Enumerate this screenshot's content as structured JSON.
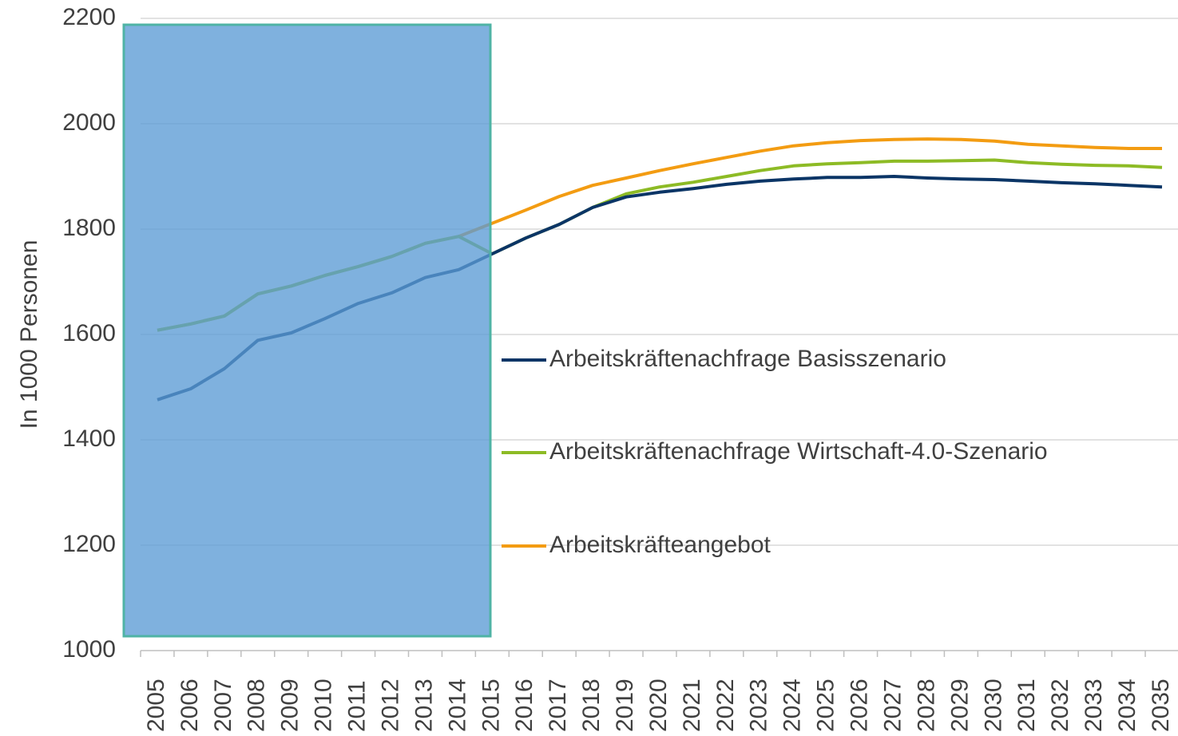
{
  "chart_data": {
    "type": "line",
    "ylabel": "In 1000 Personen",
    "categories": [
      "2005",
      "2006",
      "2007",
      "2008",
      "2009",
      "2010",
      "2011",
      "2012",
      "2013",
      "2014",
      "2015",
      "2016",
      "2017",
      "2018",
      "2019",
      "2020",
      "2021",
      "2022",
      "2023",
      "2024",
      "2025",
      "2026",
      "2027",
      "2028",
      "2029",
      "2030",
      "2031",
      "2032",
      "2033",
      "2034",
      "2035"
    ],
    "ylim": [
      1000,
      2200
    ],
    "yticks": [
      1000,
      1200,
      1400,
      1600,
      1800,
      2000,
      2200
    ],
    "grid": true,
    "series": [
      {
        "name": "Arbeitskräfteangebot",
        "color": "#f39c12",
        "values": [
          1608,
          1620,
          1635,
          1677,
          1692,
          1712,
          1729,
          1748,
          1773,
          1786,
          1811,
          1836,
          1862,
          1883,
          1897,
          1911,
          1924,
          1936,
          1948,
          1958,
          1964,
          1968,
          1970,
          1971,
          1970,
          1967,
          1961,
          1958,
          1955,
          1953,
          1953
        ]
      },
      {
        "name": "Arbeitskräftenachfrage Wirtschaft-4.0-Szenario",
        "color": "#8dbb25",
        "values": [
          1608,
          1620,
          1635,
          1677,
          1692,
          1712,
          1729,
          1748,
          1773,
          1786,
          1753,
          1783,
          1809,
          1841,
          1867,
          1880,
          1889,
          1900,
          1911,
          1920,
          1924,
          1926,
          1929,
          1929,
          1930,
          1931,
          1926,
          1923,
          1921,
          1920,
          1917
        ]
      },
      {
        "name": "Arbeitskräftenachfrage Basisszenario",
        "color": "#0b3566",
        "values": [
          1476,
          1497,
          1535,
          1589,
          1603,
          1630,
          1659,
          1679,
          1708,
          1723,
          1753,
          1783,
          1809,
          1841,
          1861,
          1870,
          1877,
          1885,
          1891,
          1895,
          1898,
          1898,
          1900,
          1897,
          1895,
          1894,
          1891,
          1888,
          1886,
          1883,
          1880
        ]
      }
    ]
  }
}
